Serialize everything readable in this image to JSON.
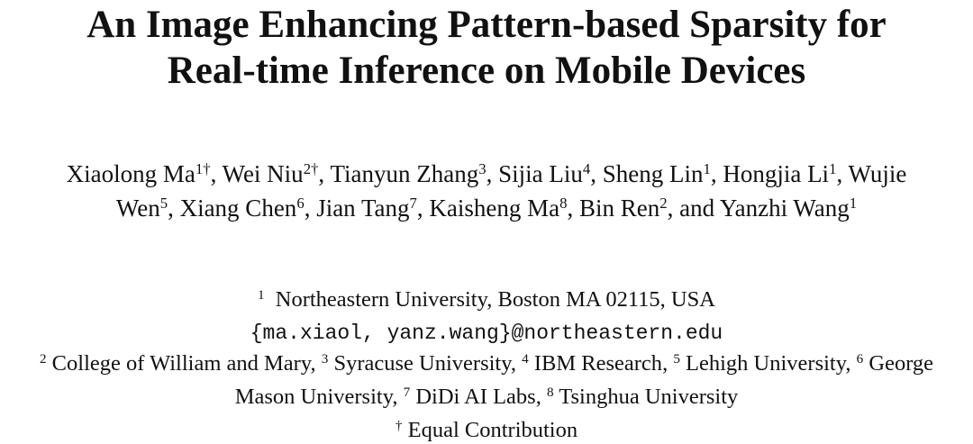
{
  "title_lines": [
    "An Image Enhancing Pattern-based Sparsity for",
    "Real-time Inference on Mobile Devices"
  ],
  "authors": [
    {
      "name": "Xiaolong Ma",
      "sup": "1†"
    },
    {
      "name": "Wei Niu",
      "sup": "2†"
    },
    {
      "name": "Tianyun Zhang",
      "sup": "3"
    },
    {
      "name": "Sijia Liu",
      "sup": "4"
    },
    {
      "name": "Sheng Lin",
      "sup": "1"
    },
    {
      "name": "Hongjia Li",
      "sup": "1"
    },
    {
      "name": "Wujie Wen",
      "sup": "5"
    },
    {
      "name": "Xiang Chen",
      "sup": "6"
    },
    {
      "name": "Jian Tang",
      "sup": "7"
    },
    {
      "name": "Kaisheng Ma",
      "sup": "8"
    },
    {
      "name": "Bin Ren",
      "sup": "2"
    },
    {
      "name": "Yanzhi Wang",
      "sup": "1"
    }
  ],
  "separator": ",",
  "conjunction": "and",
  "primary_affiliation": {
    "sup": "1",
    "text": "Northeastern University, Boston MA 02115, USA"
  },
  "email": "{ma.xiaol, yanz.wang}@northeastern.edu",
  "affiliations": [
    {
      "sup": "2",
      "text": "College of William and Mary"
    },
    {
      "sup": "3",
      "text": "Syracuse University"
    },
    {
      "sup": "4",
      "text": "IBM Research"
    },
    {
      "sup": "5",
      "text": "Lehigh University"
    },
    {
      "sup": "6",
      "text": "George Mason University"
    },
    {
      "sup": "7",
      "text": "DiDi AI Labs"
    },
    {
      "sup": "8",
      "text": "Tsinghua University"
    }
  ],
  "note": {
    "sup": "†",
    "text": "Equal Contribution"
  }
}
